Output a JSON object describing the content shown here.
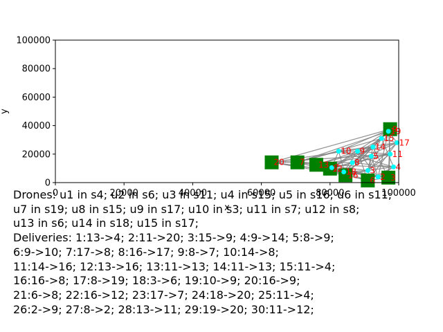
{
  "chart_data": {
    "type": "scatter",
    "title": "",
    "xlabel": "x",
    "ylabel": "y",
    "xlim": [
      0,
      100000
    ],
    "ylim": [
      0,
      100000
    ],
    "x_ticks": [
      0,
      20000,
      40000,
      60000,
      80000,
      100000
    ],
    "y_ticks": [
      0,
      20000,
      40000,
      60000,
      80000,
      100000
    ],
    "x_tick_labels": [
      "0",
      "20000",
      "40000",
      "60000",
      "80000",
      "100000"
    ],
    "y_tick_labels": [
      "0",
      "20000",
      "40000",
      "60000",
      "80000",
      "100000"
    ],
    "grid": false,
    "colors": {
      "station": "#008000",
      "delivery_point": "#00ffff",
      "route": "#808080",
      "label": "#ff0000",
      "drone": "#ffff00"
    },
    "stations": [
      {
        "label": "20",
        "x": 63000,
        "y": 14200
      },
      {
        "label": "7",
        "x": 70500,
        "y": 14200
      },
      {
        "label": "13",
        "x": 76000,
        "y": 12500
      },
      {
        "label": "12",
        "x": 80000,
        "y": 9800
      },
      {
        "label": "16",
        "x": 84500,
        "y": 5200
      },
      {
        "label": "6",
        "x": 91000,
        "y": 1500
      },
      {
        "label": "3",
        "x": 97000,
        "y": 3500
      },
      {
        "label": "9",
        "x": 97500,
        "y": 37500
      }
    ],
    "delivery_points": [
      {
        "label": "10",
        "x": 82500,
        "y": 22000
      },
      {
        "label": "9",
        "x": 88000,
        "y": 22000
      },
      {
        "label": "14",
        "x": 92500,
        "y": 25000
      },
      {
        "label": "15",
        "x": 95000,
        "y": 31000
      },
      {
        "label": "5",
        "x": 92000,
        "y": 18500
      },
      {
        "label": "11",
        "x": 97500,
        "y": 20000
      },
      {
        "label": "8",
        "x": 86500,
        "y": 14000
      },
      {
        "label": "7",
        "x": 80500,
        "y": 10500
      },
      {
        "label": "18",
        "x": 84000,
        "y": 7500
      },
      {
        "label": "3",
        "x": 91000,
        "y": 8500
      },
      {
        "label": "4",
        "x": 98500,
        "y": 11000
      },
      {
        "label": "2",
        "x": 94000,
        "y": 4000
      },
      {
        "label": "19",
        "x": 97000,
        "y": 36000
      },
      {
        "label": "17",
        "x": 99500,
        "y": 28000
      }
    ],
    "text": "Drones: u1 in s4; u2 in s6; u3 in s11; u4 in s15; u5 in s16; u6 in s11; u7 in s19; u8 in s15; u9 in s17; u10 in s3; u11 in s7; u12 in s8; u13 in s6; u14 in s18; u15 in s17; Deliveries: 1:13->4; 2:11->20; 3:15->9; 4:9->14; 5:8->9; 6:9->10; 7:17->8; 8:16->17; 9:8->7; 10:14->8; 11:14->16; 12:13->16; 13:11->13; 14:11->13; 15:11->4; 16:16->8; 17:8->19; 18:3->6; 19:10->9; 20:16->9; 21:6->8; 22:16->12; 23:17->7; 24:18->20; 25:11->4; 26:2->9; 27:8->2; 28:13->11; 29:19->20; 30:11->12;"
  },
  "caption": {
    "lines": [
      "Drones: u1 in s4; u2 in s6; u3 in s11; u4 in s15; u5 in s16; u6 in s11;",
      "u7 in s19; u8 in s15; u9 in s17; u10 in s3; u11 in s7; u12 in s8;",
      "u13 in s6; u14 in s18; u15 in s17;",
      "Deliveries: 1:13->4; 2:11->20; 3:15->9; 4:9->14; 5:8->9;",
      "6:9->10; 7:17->8; 8:16->17; 9:8->7; 10:14->8;",
      "11:14->16; 12:13->16; 13:11->13; 14:11->13; 15:11->4;",
      "16:16->8; 17:8->19; 18:3->6; 19:10->9; 20:16->9;",
      "21:6->8; 22:16->12; 23:17->7; 24:18->20; 25:11->4;",
      "26:2->9; 27:8->2; 28:13->11; 29:19->20; 30:11->12;"
    ]
  }
}
